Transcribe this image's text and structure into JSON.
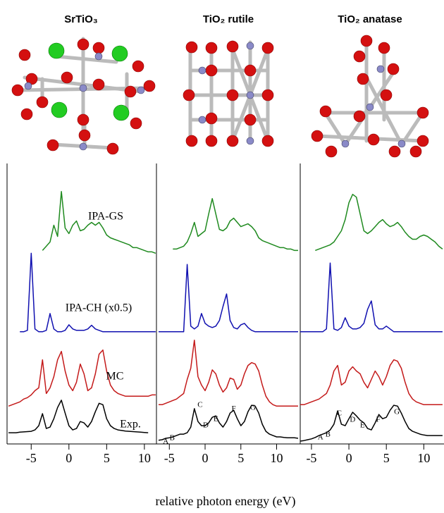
{
  "chart_data": [
    {
      "type": "line",
      "title": "SrTiO₃",
      "x": [
        -8,
        -7.5,
        -7,
        -6.5,
        -6,
        -5.5,
        -5,
        -4.5,
        -4,
        -3.5,
        -3,
        -2.5,
        -2,
        -1.5,
        -1,
        -0.5,
        0,
        0.5,
        1,
        1.5,
        2,
        2.5,
        3,
        3.5,
        4,
        4.5,
        5,
        5.5,
        6,
        6.5,
        7,
        7.5,
        8,
        8.5,
        9,
        9.5,
        10,
        10.5,
        11,
        11.5
      ],
      "xlim": [
        -8.2,
        11.6
      ],
      "xticks": [
        -5,
        0,
        5,
        10
      ],
      "ylim": [
        0,
        100
      ],
      "series": [
        {
          "name": "IPA-GS",
          "color": "#1f8a1f",
          "values": [
            null,
            null,
            null,
            null,
            null,
            null,
            null,
            null,
            null,
            69,
            70.5,
            72,
            78,
            74,
            90,
            77,
            75,
            78,
            79.5,
            76,
            76.5,
            78,
            79,
            78,
            79,
            77,
            74.5,
            73.5,
            73,
            72.5,
            72,
            71.5,
            71,
            70,
            70,
            69.5,
            69,
            68.5,
            68.5,
            68
          ]
        },
        {
          "name": "IPA-CH (x0.5)",
          "color": "#1010b0",
          "values": [
            null,
            null,
            null,
            40,
            40,
            40.5,
            68,
            41,
            40,
            40,
            40.5,
            46.5,
            41,
            40,
            40,
            40.5,
            42.5,
            41,
            40.5,
            40.5,
            40.5,
            41,
            42.3,
            41,
            40.5,
            40,
            40,
            40,
            40,
            40,
            40,
            40,
            40,
            40,
            40,
            40,
            40,
            40,
            40,
            40
          ]
        },
        {
          "name": "MC",
          "color": "#c41a1a",
          "values": [
            13.5,
            14,
            14.5,
            15,
            16,
            16.5,
            17.5,
            19,
            20,
            30,
            18,
            20,
            24,
            30,
            33,
            26,
            21,
            19,
            22,
            28.5,
            25,
            19,
            20,
            25,
            32,
            33.5,
            26,
            21,
            19,
            18,
            17.5,
            17,
            17,
            17,
            17,
            17,
            17,
            17,
            17.5,
            17.5
          ]
        },
        {
          "name": "Exp.",
          "color": "#000000",
          "values": [
            4,
            4,
            4,
            4.2,
            4.3,
            4.4,
            4.5,
            5,
            6.5,
            10.8,
            5.5,
            6,
            9,
            13,
            15.6,
            11,
            6.5,
            5,
            5.5,
            8,
            7.5,
            6,
            8,
            11.5,
            14.5,
            14,
            9,
            6.5,
            5.5,
            5,
            4.8,
            4.6,
            4.5,
            4.4,
            4.3,
            4.2,
            4.1,
            4,
            null,
            null
          ]
        }
      ]
    },
    {
      "type": "line",
      "title": "TiO₂ rutile",
      "xlabel": "relative photon energy (eV)",
      "x": [
        -6.5,
        -6,
        -5.5,
        -5,
        -4.5,
        -4,
        -3.5,
        -3,
        -2.5,
        -2,
        -1.5,
        -1,
        -0.5,
        0,
        0.5,
        1,
        1.5,
        2,
        2.5,
        3,
        3.5,
        4,
        4.5,
        5,
        5.5,
        6,
        6.5,
        7,
        7.5,
        8,
        8.5,
        9,
        9.5,
        10,
        10.5,
        11,
        11.5,
        12,
        12.5,
        13
      ],
      "xlim": [
        -6.8,
        13.3
      ],
      "xticks": [
        -5,
        0,
        5,
        10
      ],
      "ylim": [
        0,
        100
      ],
      "series": [
        {
          "color": "#1f8a1f",
          "values": [
            null,
            null,
            null,
            null,
            69.5,
            69.5,
            70,
            70.5,
            72,
            75,
            79,
            74,
            75,
            76,
            82,
            87.5,
            82,
            76.5,
            76,
            77,
            79.5,
            80.5,
            79,
            77.5,
            78,
            78.5,
            77.5,
            76,
            73.5,
            72.5,
            72,
            71.5,
            71,
            70.5,
            70,
            70,
            69.5,
            69.5,
            69,
            69
          ]
        },
        {
          "color": "#1010b0",
          "values": [
            40,
            40,
            40,
            40,
            40,
            40,
            40,
            40,
            64,
            42,
            41,
            42,
            46.5,
            43,
            42,
            41.5,
            42,
            44,
            49,
            53.5,
            44,
            41.5,
            41,
            42.5,
            43,
            41.5,
            40.5,
            40,
            40,
            40,
            40,
            40,
            40,
            40,
            40,
            40,
            40,
            40,
            40,
            40
          ]
        },
        {
          "color": "#c41a1a",
          "values": [
            14,
            14,
            14.5,
            15,
            15.5,
            16,
            17,
            18,
            23,
            27,
            37,
            24,
            21,
            19,
            22,
            26.4,
            25,
            21,
            18.5,
            20,
            23.5,
            23,
            19.5,
            21,
            25,
            28,
            29,
            28.5,
            26,
            21,
            17,
            15,
            14,
            13.5,
            13.5,
            13.5,
            13.5,
            13.5,
            13.5,
            13.5
          ]
        },
        {
          "color": "#000000",
          "values": [
            1.3,
            1.5,
            2,
            2.2,
            2.5,
            3,
            3.5,
            3.5,
            4,
            6,
            12.6,
            8,
            6.5,
            6.5,
            7.5,
            9.5,
            10,
            7.5,
            6,
            8,
            11,
            12,
            9,
            6.5,
            8,
            11.5,
            13.8,
            13.5,
            11,
            7,
            4.5,
            3.5,
            3,
            2.5,
            2.5,
            2.3,
            2.2,
            2.2,
            2.2,
            2
          ]
        }
      ],
      "annotations": [
        {
          "text": "A",
          "x": -5.5,
          "y": 0.8
        },
        {
          "text": "B",
          "x": -4.6,
          "y": 2
        },
        {
          "text": "C",
          "x": -0.7,
          "y": 13.8
        },
        {
          "text": "D",
          "x": 0.1,
          "y": 6.5
        },
        {
          "text": "E",
          "x": 1.5,
          "y": 8.8
        },
        {
          "text": "F",
          "x": 4,
          "y": 12.5
        },
        {
          "text": "G",
          "x": 6.7,
          "y": 12.8
        }
      ]
    },
    {
      "type": "line",
      "title": "TiO₂ anatase",
      "x": [
        -6.5,
        -6,
        -5.5,
        -5,
        -4.5,
        -4,
        -3.5,
        -3,
        -2.5,
        -2,
        -1.5,
        -1,
        -0.5,
        0,
        0.5,
        1,
        1.5,
        2,
        2.5,
        3,
        3.5,
        4,
        4.5,
        5,
        5.5,
        6,
        6.5,
        7,
        7.5,
        8,
        8.5,
        9,
        9.5,
        10,
        10.5,
        11,
        11.5,
        12,
        12.5
      ],
      "xlim": [
        -6.5,
        12.7
      ],
      "xticks": [
        -5,
        0,
        5,
        10
      ],
      "ylim": [
        0,
        100
      ],
      "series": [
        {
          "color": "#1f8a1f",
          "values": [
            null,
            null,
            null,
            null,
            69,
            69.5,
            70,
            70.5,
            71,
            72,
            74,
            76,
            80,
            86,
            89,
            88,
            82,
            76,
            75,
            76,
            77.5,
            79,
            80,
            78.5,
            77.5,
            78,
            79,
            77.5,
            75.5,
            74,
            73,
            73,
            74,
            74.5,
            74,
            73,
            72,
            70.5,
            69.5
          ]
        },
        {
          "color": "#1010b0",
          "values": [
            40,
            40,
            40,
            40,
            40,
            40,
            40,
            41,
            64.5,
            41,
            40.5,
            41.5,
            45,
            42,
            41,
            41,
            41.5,
            43,
            48,
            51,
            42.5,
            41,
            41,
            42,
            41,
            40,
            40,
            40,
            40,
            40,
            40,
            40,
            40,
            40,
            40,
            40,
            40,
            40,
            40
          ]
        },
        {
          "color": "#c41a1a",
          "values": [
            14,
            14,
            14.5,
            15,
            15.5,
            16,
            17,
            18,
            21,
            26,
            28,
            21,
            22,
            26,
            27.5,
            26,
            25,
            22,
            20,
            23,
            26,
            24,
            21,
            24,
            28,
            30,
            29.5,
            27,
            22,
            18,
            16,
            15,
            14.5,
            14,
            14,
            14,
            14,
            14,
            14
          ]
        },
        {
          "color": "#000000",
          "values": [
            1,
            1.2,
            1.5,
            1.8,
            2.3,
            3,
            3.5,
            4,
            5,
            7,
            11.8,
            7,
            6.5,
            9,
            11.3,
            10,
            8.5,
            7.5,
            5.5,
            5,
            7.5,
            10.5,
            9,
            9.5,
            12,
            13.8,
            13.5,
            11,
            8,
            5.5,
            4.5,
            4,
            3.5,
            3.2,
            3,
            3,
            3,
            3,
            3
          ]
        }
      ],
      "annotations": [
        {
          "text": "A",
          "x": -3.8,
          "y": 2.3
        },
        {
          "text": "B",
          "x": -2.8,
          "y": 3.3
        },
        {
          "text": "C",
          "x": -1.3,
          "y": 10.8
        },
        {
          "text": "D",
          "x": 0.5,
          "y": 8.6
        },
        {
          "text": "E",
          "x": 1.8,
          "y": 6.5
        },
        {
          "text": "F",
          "x": 3.9,
          "y": 8.6
        },
        {
          "text": "G",
          "x": 6.4,
          "y": 11.3
        }
      ]
    }
  ]
}
